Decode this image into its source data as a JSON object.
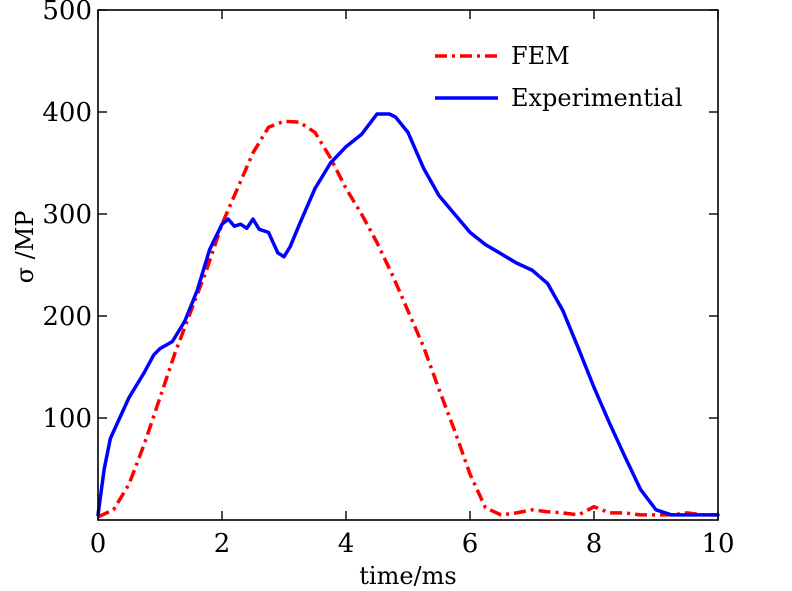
{
  "chart_data": {
    "type": "line",
    "xlabel": "time/ms",
    "ylabel": "σ /MP",
    "xlim": [
      0,
      10
    ],
    "ylim": [
      0,
      500
    ],
    "xticks": [
      0,
      2,
      4,
      6,
      8,
      10
    ],
    "yticks": [
      100,
      200,
      300,
      400,
      500
    ],
    "grid": false,
    "legend_position": "top-right",
    "series": [
      {
        "name": "FEM",
        "color": "#ff0000",
        "style": "dash-dot",
        "x": [
          0,
          0.25,
          0.5,
          0.75,
          1.0,
          1.25,
          1.5,
          1.75,
          2.0,
          2.25,
          2.5,
          2.75,
          3.0,
          3.25,
          3.5,
          3.75,
          4.0,
          4.25,
          4.5,
          4.75,
          5.0,
          5.25,
          5.5,
          5.75,
          6.0,
          6.25,
          6.5,
          6.75,
          7.0,
          7.25,
          7.5,
          7.75,
          8.0,
          8.25,
          8.5,
          8.75,
          9.0,
          9.25,
          9.5,
          9.75,
          10.0
        ],
        "y": [
          3,
          10,
          35,
          75,
          120,
          165,
          205,
          245,
          290,
          325,
          360,
          385,
          391,
          390,
          380,
          355,
          325,
          300,
          272,
          240,
          205,
          170,
          128,
          88,
          45,
          12,
          5,
          7,
          10,
          8,
          7,
          5,
          13,
          7,
          7,
          5,
          5,
          5,
          7,
          5,
          5
        ]
      },
      {
        "name": "Experimential",
        "color": "#0000ff",
        "style": "solid",
        "x": [
          0,
          0.1,
          0.2,
          0.35,
          0.5,
          0.75,
          0.9,
          1.0,
          1.2,
          1.4,
          1.6,
          1.8,
          2.0,
          2.1,
          2.2,
          2.3,
          2.4,
          2.5,
          2.6,
          2.75,
          2.9,
          3.0,
          3.1,
          3.25,
          3.5,
          3.75,
          4.0,
          4.25,
          4.4,
          4.5,
          4.6,
          4.7,
          4.8,
          5.0,
          5.25,
          5.5,
          5.75,
          6.0,
          6.25,
          6.5,
          6.75,
          7.0,
          7.25,
          7.5,
          7.75,
          8.0,
          8.25,
          8.5,
          8.75,
          9.0,
          9.25,
          9.5,
          9.75,
          10.0
        ],
        "y": [
          5,
          50,
          80,
          100,
          120,
          145,
          162,
          168,
          175,
          195,
          225,
          265,
          290,
          295,
          288,
          290,
          286,
          295,
          285,
          282,
          262,
          258,
          268,
          290,
          325,
          350,
          366,
          378,
          390,
          398,
          398,
          398,
          395,
          380,
          345,
          318,
          300,
          282,
          270,
          261,
          252,
          245,
          232,
          205,
          168,
          130,
          95,
          62,
          30,
          10,
          5,
          5,
          5,
          5
        ]
      }
    ]
  }
}
